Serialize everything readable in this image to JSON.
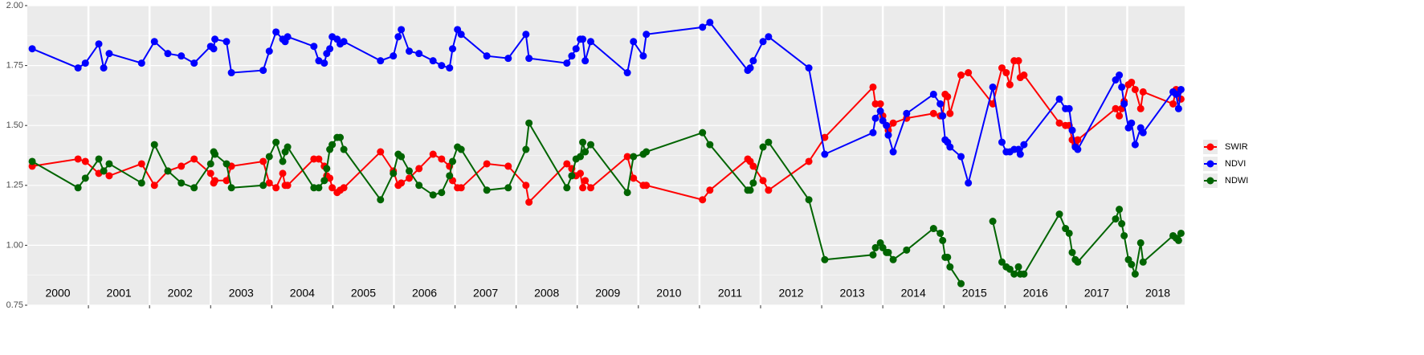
{
  "chart_data": {
    "type": "line",
    "x": [
      2000.08,
      2000.83,
      2000.95,
      2001.17,
      2001.25,
      2001.34,
      2001.87,
      2002.08,
      2002.3,
      2002.52,
      2002.73,
      2003.0,
      2003.05,
      2003.07,
      2003.26,
      2003.34,
      2003.86,
      2003.96,
      2004.07,
      2004.18,
      2004.22,
      2004.26,
      2004.69,
      2004.77,
      2004.86,
      2004.9,
      2004.95,
      2004.99,
      2005.07,
      2005.12,
      2005.18,
      2005.78,
      2005.99,
      2006.07,
      2006.12,
      2006.25,
      2006.41,
      2006.64,
      2006.78,
      2006.91,
      2006.96,
      2007.04,
      2007.1,
      2007.52,
      2007.87,
      2008.16,
      2008.21,
      2008.83,
      2008.91,
      2008.98,
      2009.05,
      2009.09,
      2009.13,
      2009.22,
      2009.82,
      2009.92,
      2010.08,
      2010.13,
      2011.05,
      2011.17,
      2011.79,
      2011.83,
      2011.88,
      2012.04,
      2012.13,
      2012.79,
      2013.05,
      2013.84,
      2013.88,
      2013.96,
      2014.0,
      2014.06,
      2014.09,
      2014.17,
      2014.39,
      2014.83,
      2014.94,
      2014.98,
      2015.02,
      2015.06,
      2015.1,
      2015.28,
      2015.4,
      2015.8,
      2015.95,
      2016.02,
      2016.08,
      2016.15,
      2016.22,
      2016.25,
      2016.31,
      2016.89,
      2016.99,
      2017.05,
      2017.1,
      2017.15,
      2017.19,
      2017.81,
      2017.87,
      2017.91,
      2017.95,
      2018.02,
      2018.07,
      2018.13,
      2018.22,
      2018.26,
      2018.75,
      2018.8,
      2018.84,
      2018.88
    ],
    "series": [
      {
        "name": "SWIR",
        "color": "#ff0000",
        "values": [
          1.33,
          1.36,
          1.35,
          1.3,
          1.31,
          1.29,
          1.34,
          1.25,
          1.31,
          1.33,
          1.36,
          1.3,
          1.26,
          1.27,
          1.27,
          1.33,
          1.35,
          1.26,
          1.24,
          1.3,
          1.25,
          1.25,
          1.36,
          1.36,
          1.33,
          1.29,
          1.28,
          1.24,
          1.22,
          1.23,
          1.24,
          1.39,
          1.31,
          1.25,
          1.26,
          1.28,
          1.32,
          1.38,
          1.36,
          1.33,
          1.27,
          1.24,
          1.24,
          1.34,
          1.33,
          1.25,
          1.18,
          1.34,
          1.32,
          1.29,
          1.3,
          1.24,
          1.27,
          1.24,
          1.37,
          1.28,
          1.25,
          1.25,
          1.19,
          1.23,
          1.36,
          1.35,
          1.33,
          1.27,
          1.23,
          1.35,
          1.45,
          1.66,
          1.59,
          1.59,
          1.54,
          1.5,
          1.48,
          1.51,
          1.53,
          1.55,
          1.54,
          1.54,
          1.63,
          1.62,
          1.55,
          1.71,
          1.72,
          1.59,
          1.74,
          1.72,
          1.67,
          1.77,
          1.77,
          1.7,
          1.71,
          1.51,
          1.5,
          1.5,
          1.44,
          1.42,
          1.44,
          1.57,
          1.54,
          1.57,
          1.6,
          1.67,
          1.68,
          1.65,
          1.57,
          1.64,
          1.59,
          1.65,
          1.64,
          1.61
        ]
      },
      {
        "name": "NDVI",
        "color": "#0000ff",
        "values": [
          1.82,
          1.74,
          1.76,
          1.84,
          1.74,
          1.8,
          1.76,
          1.85,
          1.8,
          1.79,
          1.76,
          1.83,
          1.82,
          1.86,
          1.85,
          1.72,
          1.73,
          1.81,
          1.89,
          1.86,
          1.85,
          1.87,
          1.83,
          1.77,
          1.76,
          1.8,
          1.82,
          1.87,
          1.86,
          1.84,
          1.85,
          1.77,
          1.79,
          1.87,
          1.9,
          1.81,
          1.8,
          1.77,
          1.75,
          1.74,
          1.82,
          1.9,
          1.88,
          1.79,
          1.78,
          1.88,
          1.78,
          1.76,
          1.79,
          1.82,
          1.86,
          1.86,
          1.77,
          1.85,
          1.72,
          1.85,
          1.79,
          1.88,
          1.91,
          1.93,
          1.73,
          1.74,
          1.77,
          1.85,
          1.87,
          1.74,
          1.38,
          1.47,
          1.53,
          1.56,
          1.52,
          1.5,
          1.46,
          1.39,
          1.55,
          1.63,
          1.59,
          1.54,
          1.44,
          1.43,
          1.41,
          1.37,
          1.26,
          1.66,
          1.43,
          1.39,
          1.39,
          1.4,
          1.4,
          1.38,
          1.42,
          1.61,
          1.57,
          1.57,
          1.48,
          1.41,
          1.4,
          1.69,
          1.71,
          1.66,
          1.59,
          1.49,
          1.51,
          1.42,
          1.49,
          1.47,
          1.64,
          1.63,
          1.57,
          1.65
        ]
      },
      {
        "name": "NDWI",
        "color": "#006400",
        "values": [
          1.35,
          1.24,
          1.28,
          1.36,
          1.31,
          1.34,
          1.26,
          1.42,
          1.31,
          1.26,
          1.24,
          1.34,
          1.39,
          1.38,
          1.34,
          1.24,
          1.25,
          1.37,
          1.43,
          1.35,
          1.39,
          1.41,
          1.24,
          1.24,
          1.27,
          1.32,
          1.4,
          1.42,
          1.45,
          1.45,
          1.4,
          1.19,
          1.3,
          1.38,
          1.37,
          1.31,
          1.25,
          1.21,
          1.22,
          1.29,
          1.35,
          1.41,
          1.4,
          1.23,
          1.24,
          1.4,
          1.51,
          1.24,
          1.29,
          1.36,
          1.37,
          1.43,
          1.39,
          1.42,
          1.22,
          1.37,
          1.38,
          1.39,
          1.47,
          1.42,
          1.23,
          1.23,
          1.26,
          1.41,
          1.43,
          1.19,
          0.94,
          0.96,
          0.99,
          1.01,
          0.99,
          0.97,
          0.97,
          0.94,
          0.98,
          1.07,
          1.05,
          1.02,
          0.95,
          0.95,
          0.91,
          0.84,
          null,
          1.1,
          0.93,
          0.91,
          0.9,
          0.88,
          0.91,
          0.88,
          0.88,
          1.13,
          1.07,
          1.05,
          0.97,
          0.94,
          0.93,
          1.11,
          1.15,
          1.09,
          1.04,
          0.94,
          0.92,
          0.88,
          1.01,
          0.93,
          1.04,
          1.03,
          1.02,
          1.05
        ]
      }
    ],
    "xlim": [
      2000.0,
      2018.94
    ],
    "year_boundaries": [
      2001,
      2002,
      2003,
      2004,
      2005,
      2006,
      2007,
      2008,
      2009,
      2010,
      2011,
      2012,
      2013,
      2014,
      2015,
      2016,
      2017,
      2018
    ],
    "year_labels": [
      {
        "value": 2000.5,
        "label": "2000"
      },
      {
        "value": 2001.5,
        "label": "2001"
      },
      {
        "value": 2002.5,
        "label": "2002"
      },
      {
        "value": 2003.5,
        "label": "2003"
      },
      {
        "value": 2004.5,
        "label": "2004"
      },
      {
        "value": 2005.5,
        "label": "2005"
      },
      {
        "value": 2006.5,
        "label": "2006"
      },
      {
        "value": 2007.5,
        "label": "2007"
      },
      {
        "value": 2008.5,
        "label": "2008"
      },
      {
        "value": 2009.5,
        "label": "2009"
      },
      {
        "value": 2010.5,
        "label": "2010"
      },
      {
        "value": 2011.5,
        "label": "2011"
      },
      {
        "value": 2012.5,
        "label": "2012"
      },
      {
        "value": 2013.5,
        "label": "2013"
      },
      {
        "value": 2014.5,
        "label": "2014"
      },
      {
        "value": 2015.5,
        "label": "2015"
      },
      {
        "value": 2016.5,
        "label": "2016"
      },
      {
        "value": 2017.5,
        "label": "2017"
      },
      {
        "value": 2018.5,
        "label": "2018"
      }
    ],
    "ylim": [
      0.75,
      2.0
    ],
    "yticks": [
      0.75,
      {
        "value": 1.0,
        "label": "1.00"
      },
      1.25,
      {
        "value": 1.5,
        "label": "1.50"
      },
      1.75,
      {
        "value": 2.0,
        "label": "2.00"
      }
    ],
    "grid": true
  }
}
